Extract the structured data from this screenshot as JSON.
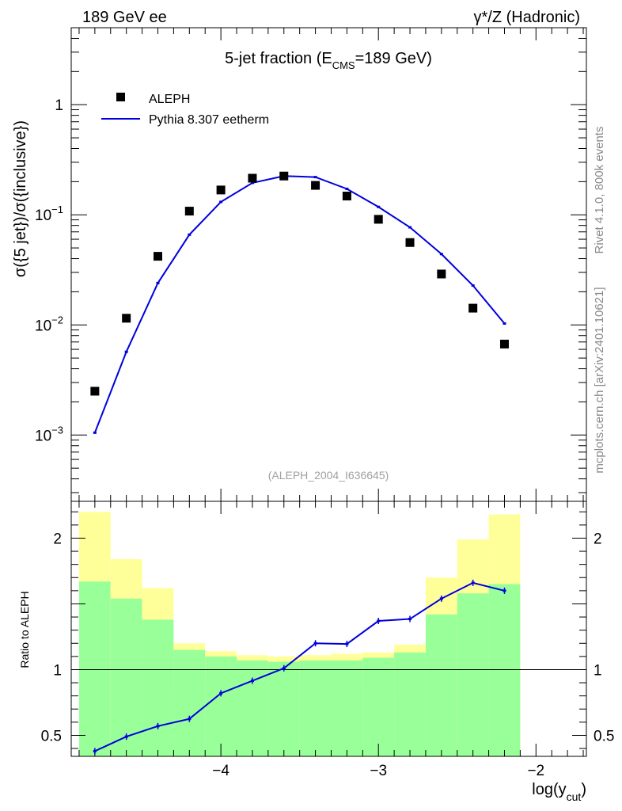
{
  "header": {
    "left": "189 GeV ee",
    "right": "γ*/Z (Hadronic)"
  },
  "side_labels": {
    "rivet": "Rivet 4.1.0,  800k events",
    "mcplots": "mcplots.cern.ch [arXiv:2401.10621]"
  },
  "colors": {
    "mc_line": "#0000dd",
    "data_marker": "#000000",
    "band_inner": "#99ff99",
    "band_outer": "#ffff99"
  },
  "chart_data": [
    {
      "type": "scatter",
      "name": "main",
      "title_main": "5-jet fraction (E",
      "title_sub": "CMS",
      "title_tail": "=189 GeV)",
      "ylabel": "σ({5 jet})/σ({inclusive})",
      "yscale": "log",
      "ylim": [
        0.00025,
        5
      ],
      "xlim": [
        -4.95,
        -1.68
      ],
      "ytick_labels": [
        {
          "value": 1,
          "base": "1",
          "exp": ""
        },
        {
          "value": 0.1,
          "base": "10",
          "exp": "−1"
        },
        {
          "value": 0.01,
          "base": "10",
          "exp": "−2"
        },
        {
          "value": 0.001,
          "base": "10",
          "exp": "−3"
        }
      ],
      "legend": {
        "position": "top-left",
        "data_label": "ALEPH",
        "mc_label": "Pythia 8.307 eetherm"
      },
      "watermark": "(ALEPH_2004_I636645)",
      "series": [
        {
          "name": "ALEPH",
          "style": "markers",
          "x": [
            -4.8,
            -4.6,
            -4.4,
            -4.2,
            -4.0,
            -3.8,
            -3.6,
            -3.4,
            -3.2,
            -3.0,
            -2.8,
            -2.6,
            -2.4,
            -2.2
          ],
          "y": [
            0.0025,
            0.0115,
            0.042,
            0.108,
            0.168,
            0.215,
            0.225,
            0.185,
            0.148,
            0.091,
            0.056,
            0.029,
            0.0142,
            0.0067
          ]
        },
        {
          "name": "Pythia 8.307 eetherm",
          "style": "line",
          "x": [
            -4.8,
            -4.6,
            -4.4,
            -4.2,
            -4.0,
            -3.8,
            -3.6,
            -3.4,
            -3.2,
            -3.0,
            -2.8,
            -2.6,
            -2.4,
            -2.2
          ],
          "y": [
            0.00105,
            0.0057,
            0.024,
            0.066,
            0.131,
            0.195,
            0.225,
            0.22,
            0.172,
            0.118,
            0.077,
            0.044,
            0.0228,
            0.0103
          ]
        }
      ]
    },
    {
      "type": "line",
      "name": "ratio",
      "ylabel": "Ratio to ALEPH",
      "xlabel_main": "log(y",
      "xlabel_sub": "cut",
      "xlabel_tail": ")",
      "xlim": [
        -4.95,
        -1.68
      ],
      "ylim": [
        0.34,
        2.28
      ],
      "reference_line": 1,
      "ytick_labels": [
        {
          "value": 2,
          "label": "2"
        },
        {
          "value": 1,
          "label": "1"
        },
        {
          "value": 0.5,
          "label": "0.5"
        }
      ],
      "xtick_labels": [
        {
          "value": -4,
          "label": "−4"
        },
        {
          "value": -3,
          "label": "−3"
        },
        {
          "value": -2,
          "label": "−2"
        }
      ],
      "bins": {
        "edges": [
          -4.9,
          -4.7,
          -4.5,
          -4.3,
          -4.1,
          -3.9,
          -3.7,
          -3.5,
          -3.3,
          -3.1,
          -2.9,
          -2.7,
          -2.5,
          -2.3,
          -2.1
        ],
        "inner_lo": [
          0.34,
          0.34,
          0.34,
          0.34,
          0.34,
          0.34,
          0.34,
          0.34,
          0.34,
          0.34,
          0.34,
          0.34,
          0.34,
          0.34
        ],
        "inner_hi": [
          1.67,
          1.54,
          1.38,
          1.15,
          1.1,
          1.07,
          1.06,
          1.07,
          1.07,
          1.09,
          1.13,
          1.42,
          1.58,
          1.65
        ],
        "outer_lo": [
          0.34,
          0.42,
          0.78,
          0.88,
          0.92,
          0.93,
          0.93,
          0.92,
          0.9,
          0.87,
          0.79,
          0.34,
          0.34,
          0.34
        ],
        "outer_hi": [
          2.2,
          1.84,
          1.62,
          1.2,
          1.14,
          1.11,
          1.1,
          1.11,
          1.12,
          1.13,
          1.19,
          1.7,
          1.99,
          2.18
        ]
      },
      "series": [
        {
          "name": "Pythia / ALEPH",
          "x": [
            -4.8,
            -4.6,
            -4.4,
            -4.2,
            -4.0,
            -3.8,
            -3.6,
            -3.4,
            -3.2,
            -3.0,
            -2.8,
            -2.6,
            -2.4,
            -2.2
          ],
          "y": [
            0.38,
            0.49,
            0.57,
            0.625,
            0.82,
            0.915,
            1.01,
            1.2,
            1.195,
            1.37,
            1.385,
            1.54,
            1.66,
            1.6
          ]
        }
      ]
    }
  ]
}
